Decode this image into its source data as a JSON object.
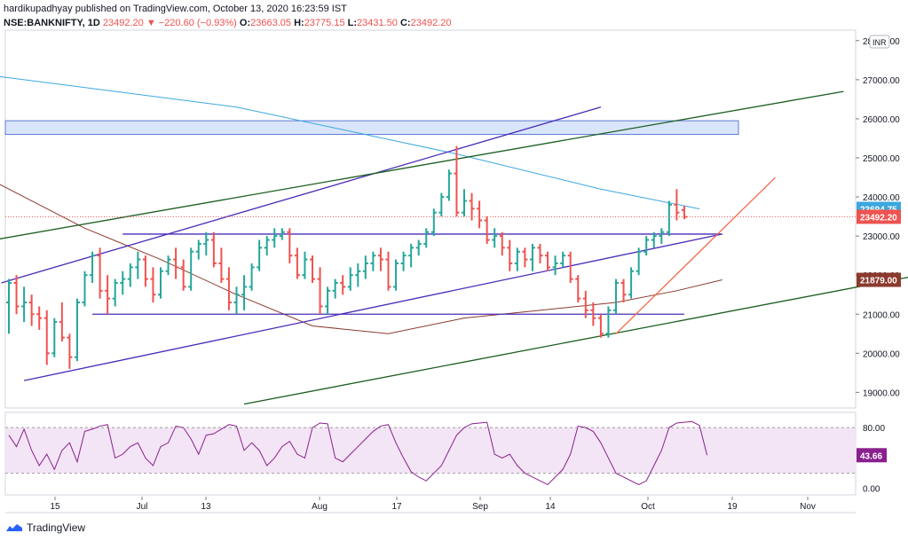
{
  "header": {
    "publisher_line": "hardikupadhyay published on TradingView.com, October 13, 2020 16:23:59 IST",
    "symbol": "NSE:BANKNIFTY, 1D",
    "last": "23492.20",
    "change": "▼ −220.60 (−0.93%)",
    "o_label": "O:",
    "o": "23663.05",
    "h_label": "H:",
    "h": "23775.15",
    "l_label": "L:",
    "l": "23431.50",
    "c_label": "C:",
    "c": "23492.20"
  },
  "footer": {
    "brand": "TradingView"
  },
  "colors": {
    "up": "#26a69a",
    "down": "#ef5350",
    "ma_blue": "#3ba7df",
    "ma_brown": "#8b3a2e",
    "purple_line": "#4a2bb8",
    "green_line": "#1b5e20",
    "rsi": "#8a1f8e",
    "rsi_bg": "#f3e5f5",
    "zone": "#c9daf8",
    "orange_line": "#f06a4a"
  },
  "chart_data": [
    {
      "type": "candlestick",
      "unit": "INR",
      "ylim": [
        18600,
        28200
      ],
      "y_ticks": [
        "19000.00",
        "20000.00",
        "21000.00",
        "22000.00",
        "23000.00",
        "24000.00",
        "25000.00",
        "26000.00",
        "27000.00",
        "28000.00"
      ],
      "x_ticks": [
        "15",
        "Jul",
        "13",
        "Aug",
        "17",
        "Sep",
        "14",
        "Oct",
        "19",
        "Nov"
      ],
      "price_labels": [
        {
          "text": "23694.75",
          "value": 23694.75,
          "color": "#3ba7df"
        },
        {
          "text": "23492.20",
          "value": 23492.2,
          "color": "#ef5350"
        },
        {
          "text": "21879.00",
          "value": 21879,
          "color": "#8b3a2e"
        }
      ],
      "unit_label": "INR",
      "current_price": 23492.2,
      "candles": [
        [
          21300,
          21900,
          20500,
          21800
        ],
        [
          21800,
          22000,
          21000,
          21200
        ],
        [
          21200,
          21700,
          20800,
          21300
        ],
        [
          21300,
          21500,
          20700,
          21000
        ],
        [
          21000,
          21200,
          20600,
          20900
        ],
        [
          20900,
          21100,
          19700,
          20000
        ],
        [
          20000,
          20900,
          19900,
          20800
        ],
        [
          20800,
          21300,
          20300,
          20400
        ],
        [
          20400,
          20500,
          19600,
          19900
        ],
        [
          19900,
          21400,
          19800,
          21300
        ],
        [
          21300,
          22100,
          21200,
          22000
        ],
        [
          22000,
          22600,
          21800,
          22500
        ],
        [
          22500,
          22700,
          21400,
          21600
        ],
        [
          21600,
          22000,
          21000,
          21400
        ],
        [
          21400,
          21900,
          21200,
          21800
        ],
        [
          21800,
          22100,
          21500,
          21900
        ],
        [
          21900,
          22300,
          21700,
          22200
        ],
        [
          22200,
          22600,
          21900,
          22400
        ],
        [
          22400,
          22500,
          21700,
          21900
        ],
        [
          21900,
          22200,
          21300,
          21500
        ],
        [
          21500,
          22200,
          21400,
          22100
        ],
        [
          22100,
          22500,
          22000,
          22400
        ],
        [
          22400,
          22700,
          21900,
          22200
        ],
        [
          22200,
          22400,
          21600,
          21700
        ],
        [
          21700,
          22700,
          21600,
          22600
        ],
        [
          22600,
          22900,
          22400,
          22800
        ],
        [
          22800,
          23100,
          22500,
          22900
        ],
        [
          22900,
          23100,
          22200,
          22300
        ],
        [
          22300,
          22700,
          21800,
          21900
        ],
        [
          21900,
          22200,
          21100,
          21300
        ],
        [
          21300,
          21700,
          21000,
          21500
        ],
        [
          21500,
          22000,
          21100,
          21700
        ],
        [
          21700,
          22300,
          21600,
          22200
        ],
        [
          22200,
          22900,
          22100,
          22700
        ],
        [
          22700,
          23000,
          22500,
          22900
        ],
        [
          22900,
          23200,
          22700,
          23000
        ],
        [
          23000,
          23200,
          22900,
          23100
        ],
        [
          23100,
          23200,
          22300,
          22500
        ],
        [
          22500,
          22700,
          21900,
          22000
        ],
        [
          22000,
          22600,
          21900,
          22400
        ],
        [
          22400,
          22500,
          21800,
          21900
        ],
        [
          21900,
          22200,
          21000,
          21200
        ],
        [
          21200,
          21700,
          21000,
          21600
        ],
        [
          21600,
          21900,
          21400,
          21800
        ],
        [
          21800,
          22000,
          21500,
          21700
        ],
        [
          21700,
          22200,
          21600,
          22000
        ],
        [
          22000,
          22300,
          21700,
          22100
        ],
        [
          22100,
          22500,
          21900,
          22300
        ],
        [
          22300,
          22600,
          22100,
          22500
        ],
        [
          22500,
          22700,
          22100,
          22400
        ],
        [
          22400,
          22600,
          21600,
          21700
        ],
        [
          21700,
          22400,
          21600,
          22300
        ],
        [
          22300,
          22600,
          22100,
          22500
        ],
        [
          22500,
          22800,
          22200,
          22700
        ],
        [
          22700,
          22900,
          22500,
          22800
        ],
        [
          22800,
          23200,
          22700,
          23100
        ],
        [
          23100,
          23700,
          23000,
          23600
        ],
        [
          23600,
          24100,
          23500,
          24000
        ],
        [
          24000,
          24700,
          23900,
          24600
        ],
        [
          24600,
          25300,
          23500,
          23600
        ],
        [
          23600,
          24200,
          23500,
          23900
        ],
        [
          23900,
          24100,
          23400,
          23700
        ],
        [
          23700,
          23900,
          23200,
          23400
        ],
        [
          23400,
          23500,
          22800,
          22900
        ],
        [
          22900,
          23200,
          22700,
          23000
        ],
        [
          23000,
          23100,
          22500,
          22700
        ],
        [
          22700,
          22900,
          22100,
          22300
        ],
        [
          22300,
          22700,
          22100,
          22600
        ],
        [
          22600,
          22700,
          22200,
          22400
        ],
        [
          22400,
          22800,
          22100,
          22700
        ],
        [
          22700,
          22800,
          22300,
          22500
        ],
        [
          22500,
          22600,
          22100,
          22200
        ],
        [
          22200,
          22500,
          22000,
          22300
        ],
        [
          22300,
          22600,
          22200,
          22500
        ],
        [
          22500,
          22600,
          21800,
          21900
        ],
        [
          21900,
          22000,
          21300,
          21400
        ],
        [
          21400,
          21600,
          20900,
          21100
        ],
        [
          21100,
          21300,
          20700,
          20900
        ],
        [
          20900,
          21000,
          20400,
          20500
        ],
        [
          20500,
          21200,
          20400,
          21100
        ],
        [
          21100,
          21900,
          21000,
          21800
        ],
        [
          21800,
          21900,
          21300,
          21500
        ],
        [
          21500,
          22200,
          21400,
          22100
        ],
        [
          22100,
          22700,
          22000,
          22600
        ],
        [
          22600,
          23000,
          22500,
          22900
        ],
        [
          22900,
          23100,
          22700,
          23000
        ],
        [
          23000,
          23200,
          22800,
          23100
        ],
        [
          23100,
          23900,
          23000,
          23800
        ],
        [
          23800,
          24200,
          23400,
          23600
        ],
        [
          23663.05,
          23775.15,
          23431.5,
          23492.2
        ]
      ],
      "ma_blue": {
        "name": "",
        "points": [
          [
            -2,
            27100
          ],
          [
            30,
            26300
          ],
          [
            59,
            25100
          ],
          [
            78,
            24200
          ],
          [
            91,
            23695
          ]
        ]
      },
      "ma_brown": {
        "name": "",
        "points": [
          [
            -2,
            24400
          ],
          [
            10,
            23200
          ],
          [
            20,
            22400
          ],
          [
            30,
            21500
          ],
          [
            40,
            20700
          ],
          [
            50,
            20500
          ],
          [
            60,
            20900
          ],
          [
            70,
            21100
          ],
          [
            80,
            21300
          ],
          [
            88,
            21600
          ],
          [
            94,
            21879
          ]
        ]
      },
      "trendlines": [
        {
          "name": "purple-upper",
          "color": "#4a2bb8",
          "points": [
            [
              -1,
              21800
            ],
            [
              78,
              26300
            ]
          ]
        },
        {
          "name": "purple-lower",
          "color": "#4a2bb8",
          "points": [
            [
              2,
              19300
            ],
            [
              94,
              23050
            ]
          ]
        },
        {
          "name": "horizontal-23050",
          "color": "#4a2bb8",
          "points": [
            [
              15,
              23050
            ],
            [
              94,
              23050
            ]
          ]
        },
        {
          "name": "horizontal-21000",
          "color": "#4a2bb8",
          "points": [
            [
              11,
              21000
            ],
            [
              89,
              21000
            ]
          ]
        },
        {
          "name": "green-upper",
          "color": "#1b5e20",
          "points": [
            [
              -2,
              22900
            ],
            [
              110,
              26700
            ]
          ]
        },
        {
          "name": "green-lower",
          "color": "#1b5e20",
          "points": [
            [
              31,
              18700
            ],
            [
              120,
              22000
            ]
          ]
        },
        {
          "name": "orange-line",
          "color": "#f06a4a",
          "points": [
            [
              80,
              20500
            ],
            [
              101,
              24500
            ]
          ]
        }
      ],
      "resistance_zone": {
        "low": 25600,
        "high": 25950
      }
    },
    {
      "type": "line",
      "name": "RSI",
      "ylim": [
        -5,
        100
      ],
      "y_ticks": [
        "80.00",
        "0.00"
      ],
      "current_label": "43.66",
      "current_value": 43.66,
      "band": [
        20,
        80
      ],
      "values": [
        70,
        55,
        78,
        50,
        30,
        45,
        25,
        50,
        60,
        35,
        75,
        78,
        82,
        84,
        40,
        45,
        55,
        60,
        40,
        30,
        55,
        60,
        82,
        80,
        65,
        45,
        70,
        72,
        78,
        84,
        82,
        50,
        60,
        50,
        30,
        40,
        55,
        62,
        45,
        40,
        80,
        86,
        85,
        40,
        35,
        45,
        55,
        65,
        75,
        82,
        84,
        60,
        40,
        22,
        15,
        10,
        20,
        30,
        50,
        70,
        80,
        85,
        86,
        87,
        45,
        40,
        45,
        30,
        20,
        15,
        10,
        5,
        15,
        25,
        45,
        82,
        80,
        75,
        60,
        40,
        20,
        15,
        10,
        5,
        10,
        30,
        50,
        80,
        86,
        87,
        88,
        83,
        43.66
      ]
    }
  ]
}
